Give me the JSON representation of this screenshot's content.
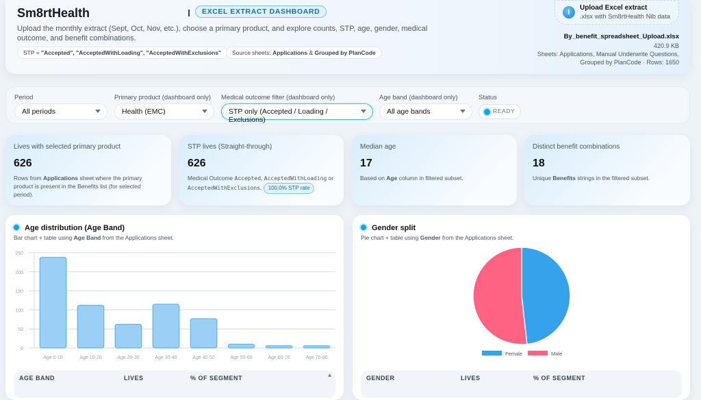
{
  "header": {
    "brand": "Sm8rtHealth",
    "badge": "EXCEL EXTRACT DASHBOARD",
    "description": "Upload the monthly extract (Sept, Oct, Nov, etc.), choose a primary product, and explore counts, STP, age, gender, medical outcome, and benefit combinations.",
    "stp_chip": {
      "prefix": "STP = ",
      "value": "\"Accepted\", \"AcceptedWithLoading\", \"AcceptedWithExclusions\""
    },
    "source_chip": {
      "prefix": "Source sheets: ",
      "a": "Applications",
      "amp": " & ",
      "b": "Grouped by PlanCode"
    },
    "upload": {
      "icon": "upload-icon",
      "title": "Upload Excel extract",
      "subtitle": ".xlsx with Sm8rtHealth Nib data"
    },
    "file": {
      "name": "By_benefit_spreadsheet_Upload.xlsx",
      "size": "420.9 KB",
      "sheets": "Sheets: Applications, Manual Underwrite Questions, Grouped by PlanCode · Rows: 1650"
    }
  },
  "filters": {
    "period": {
      "label": "Period",
      "value": "All periods"
    },
    "product": {
      "label": "Primary product (dashboard only)",
      "value": "Health (EMC)"
    },
    "outcome": {
      "label": "Medical outcome filter (dashboard only)",
      "value": "STP only (Accepted / Loading / Exclusions)"
    },
    "age": {
      "label": "Age band (dashboard only)",
      "value": "All age bands"
    },
    "status": {
      "label": "Status",
      "value": "READY"
    }
  },
  "kpis": [
    {
      "title": "Lives with selected primary product",
      "value": "626",
      "d1": "Rows from ",
      "b": "Applications",
      "d2": " sheet where the primary product is present in the Benefits list (for selected period)."
    },
    {
      "title": "STP lives (Straight-through)",
      "value": "626",
      "d1": "Medical Outcome ",
      "m1": "Accepted",
      "c": ", ",
      "m2": "AcceptedWithLoading",
      "or": " or ",
      "m3": "AcceptedWithExclusions",
      "dot": ". ",
      "rate": "100.0% STP rate"
    },
    {
      "title": "Median age",
      "value": "17",
      "d1": "Based on ",
      "b": "Age",
      "d2": " column in filtered subset."
    },
    {
      "title": "Distinct benefit combinations",
      "value": "18",
      "d1": "Unique ",
      "b": "Benefits",
      "d2": " strings in the filtered subset."
    }
  ],
  "age_panel": {
    "title": "Age distribution (Age Band)",
    "sub1": "Bar chart + table using ",
    "subb": "Age Band",
    "sub2": " from the Applications sheet.",
    "columns": [
      "AGE BAND",
      "LIVES",
      "% OF SEGMENT"
    ]
  },
  "gender_panel": {
    "title": "Gender split",
    "sub1": "Pie chart + table using ",
    "subb": "Gender",
    "sub2": " from the Applications sheet.",
    "columns": [
      "GENDER",
      "LIVES",
      "% OF SEGMENT"
    ]
  },
  "chart_data": [
    {
      "type": "bar",
      "categories": [
        "Age 0-10",
        "Age 10-20",
        "Age 20-30",
        "Age 30-40",
        "Age 40-50",
        "Age 50-60",
        "Age 60-70",
        "Age 70-80"
      ],
      "values": [
        238,
        112,
        62,
        115,
        77,
        10,
        6,
        6
      ],
      "ylim": [
        0,
        250
      ],
      "yticks": [
        0,
        50,
        100,
        150,
        200,
        250
      ],
      "grid": true,
      "color": "#9bcff5",
      "border": "#5db3ef"
    },
    {
      "type": "pie",
      "categories": [
        "Female",
        "Male"
      ],
      "values": [
        302,
        324
      ],
      "colors": [
        "#36a2eb",
        "#ff6384"
      ],
      "legend": "bottom"
    }
  ]
}
